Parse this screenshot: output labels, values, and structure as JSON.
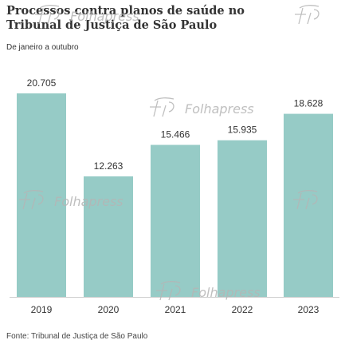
{
  "title": "Processos contra planos de saúde no Tribunal de Justiça de São Paulo",
  "subtitle": "De janeiro a outubro",
  "source": "Fonte: Tribunal de Justiça de São Paulo",
  "watermark": "Folhapress",
  "colors": {
    "bar": "#96cbc6",
    "text": "#333333",
    "watermark": "#b5b5b5"
  },
  "chart_data": {
    "type": "bar",
    "categories": [
      "2019",
      "2020",
      "2021",
      "2022",
      "2023"
    ],
    "values": [
      20705,
      12263,
      15466,
      15935,
      18628
    ],
    "labels": [
      "20.705",
      "12.263",
      "15.466",
      "15.935",
      "18.628"
    ],
    "ylim": [
      0,
      21000
    ],
    "grid": false,
    "legend": "none"
  }
}
